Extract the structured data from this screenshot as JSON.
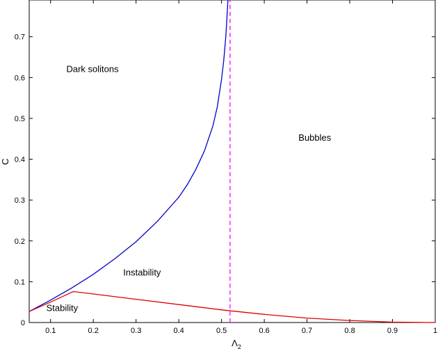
{
  "chart_data": {
    "type": "line",
    "title": "",
    "xlabel": "Λ",
    "xlabel_subscript": "2",
    "ylabel": "C",
    "xlim": [
      0.05,
      1.0
    ],
    "ylim": [
      0,
      0.79
    ],
    "xticks": [
      0.1,
      0.2,
      0.3,
      0.4,
      0.5,
      0.6,
      0.7,
      0.8,
      0.9,
      1
    ],
    "xtick_labels": [
      "0.1",
      "0.2",
      "0.3",
      "0.4",
      "0.5",
      "0.6",
      "0.7",
      "0.8",
      "0.9",
      "1"
    ],
    "yticks": [
      0,
      0.1,
      0.2,
      0.3,
      0.4,
      0.5,
      0.6,
      0.7
    ],
    "ytick_labels": [
      "0",
      "0.1",
      "0.2",
      "0.3",
      "0.4",
      "0.5",
      "0.6",
      "0.7"
    ],
    "grid": false,
    "legend": "none",
    "series": [
      {
        "color": "#0000cc",
        "style": "solid",
        "x": [
          0.05,
          0.1,
          0.15,
          0.2,
          0.25,
          0.3,
          0.35,
          0.4,
          0.42,
          0.44,
          0.46,
          0.48,
          0.49,
          0.5,
          0.505,
          0.51,
          0.515
        ],
        "y": [
          0.027,
          0.055,
          0.085,
          0.118,
          0.156,
          0.198,
          0.248,
          0.307,
          0.338,
          0.375,
          0.42,
          0.482,
          0.528,
          0.595,
          0.64,
          0.7,
          0.79
        ]
      },
      {
        "color": "#dd0000",
        "style": "solid",
        "x": [
          0.05,
          0.1,
          0.153,
          0.2,
          0.3,
          0.4,
          0.5,
          0.6,
          0.7,
          0.8,
          0.9,
          1.0
        ],
        "y": [
          0.027,
          0.05,
          0.076,
          0.07,
          0.057,
          0.044,
          0.031,
          0.02,
          0.011,
          0.005,
          0.001,
          0.0
        ]
      },
      {
        "color": "#ff00ff",
        "style": "dashed",
        "x": [
          0.52,
          0.52
        ],
        "y": [
          0,
          0.79
        ]
      }
    ],
    "annotations": [
      {
        "text": "Dark solitons",
        "x": 0.137,
        "y": 0.613
      },
      {
        "text": "Bubbles",
        "x": 0.68,
        "y": 0.445
      },
      {
        "text": "Instability",
        "x": 0.27,
        "y": 0.115
      },
      {
        "text": "Stability",
        "x": 0.09,
        "y": 0.028
      }
    ]
  }
}
